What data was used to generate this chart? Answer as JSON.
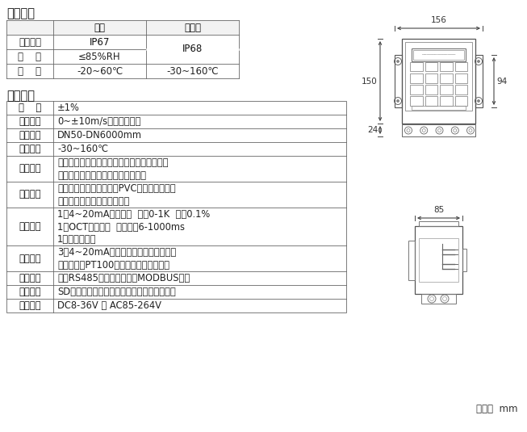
{
  "title1": "工作环境",
  "title2": "基本参数",
  "env_headers": [
    "",
    "主机",
    "传感器"
  ],
  "env_rows": [
    [
      "防护等级",
      "IP67",
      "IP68"
    ],
    [
      "湿    度",
      "≤85%RH",
      ""
    ],
    [
      "温    度",
      "-20~60℃",
      "-30~160℃"
    ]
  ],
  "params_rows": [
    [
      "精    度",
      "±1%"
    ],
    [
      "流速范围",
      "0~±10m/s，正反向测量"
    ],
    [
      "管道口径",
      "DN50-DN6000mm"
    ],
    [
      "流体温度",
      "-30~160℃"
    ],
    [
      "流体种类",
      "水、海水、污水、酸碱液、酒精、啤酒、各类\n油类等能传导超声波的单一均匀液体"
    ],
    [
      "管道材质",
      "钢、不锈钢、铸铁、铜、PVC、铝、玻璃钢等\n一切质密的管道，允许有衬里"
    ],
    [
      "信号输出",
      "1路4~20mA电流输出  阻抗0-1K  精度0.1%\n1路OCT脉冲输出  脉冲宽度6-1000ms\n1路继电器输出"
    ],
    [
      "信号输入",
      "3路4~20mA电流输入，可做数据采集器\n连接三线制PT100铂电阻，实现热量测量"
    ],
    [
      "通信接口",
      "隔离RS485串行接口，支持MODBUS协议"
    ],
    [
      "数据存储",
      "SD卡定时存储设定的参数及测量结果（选配）"
    ],
    [
      "供电方式",
      "DC8-36V 或 AC85-264V"
    ]
  ],
  "unit_label": "单位：  mm",
  "dim_156": "156",
  "dim_150": "150",
  "dim_94": "94",
  "dim_24": "24",
  "dim_85": "85",
  "line_color": "#666666",
  "text_color": "#222222",
  "bold_color": "#111111",
  "bg_header": "#f0f0f0"
}
